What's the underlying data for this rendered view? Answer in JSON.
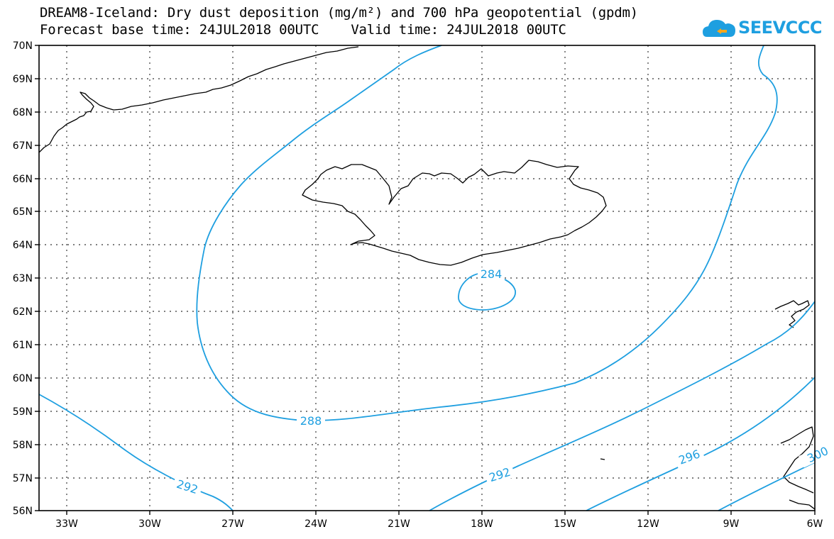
{
  "header": {
    "title": "DREAM8-Iceland: Dry dust deposition (mg/m²) and 700 hPa geopotential (gpdm)",
    "subtitle": "Forecast base time: 24JUL2018 00UTC    Valid time: 24JUL2018 00UTC"
  },
  "logo": {
    "text": "SEEVCCC",
    "icon": "cloud-logo-icon",
    "color": "#1e9fe0"
  },
  "map": {
    "lat_labels": [
      "70N",
      "69N",
      "68N",
      "67N",
      "66N",
      "65N",
      "64N",
      "63N",
      "62N",
      "61N",
      "60N",
      "59N",
      "58N",
      "57N",
      "56N"
    ],
    "lon_labels": [
      "33W",
      "30W",
      "27W",
      "24W",
      "21W",
      "18W",
      "15W",
      "12W",
      "9W",
      "6W"
    ],
    "contour_color": "#1e9fe0",
    "contour_labels": [
      "284",
      "288",
      "292",
      "292",
      "296",
      "300"
    ]
  }
}
